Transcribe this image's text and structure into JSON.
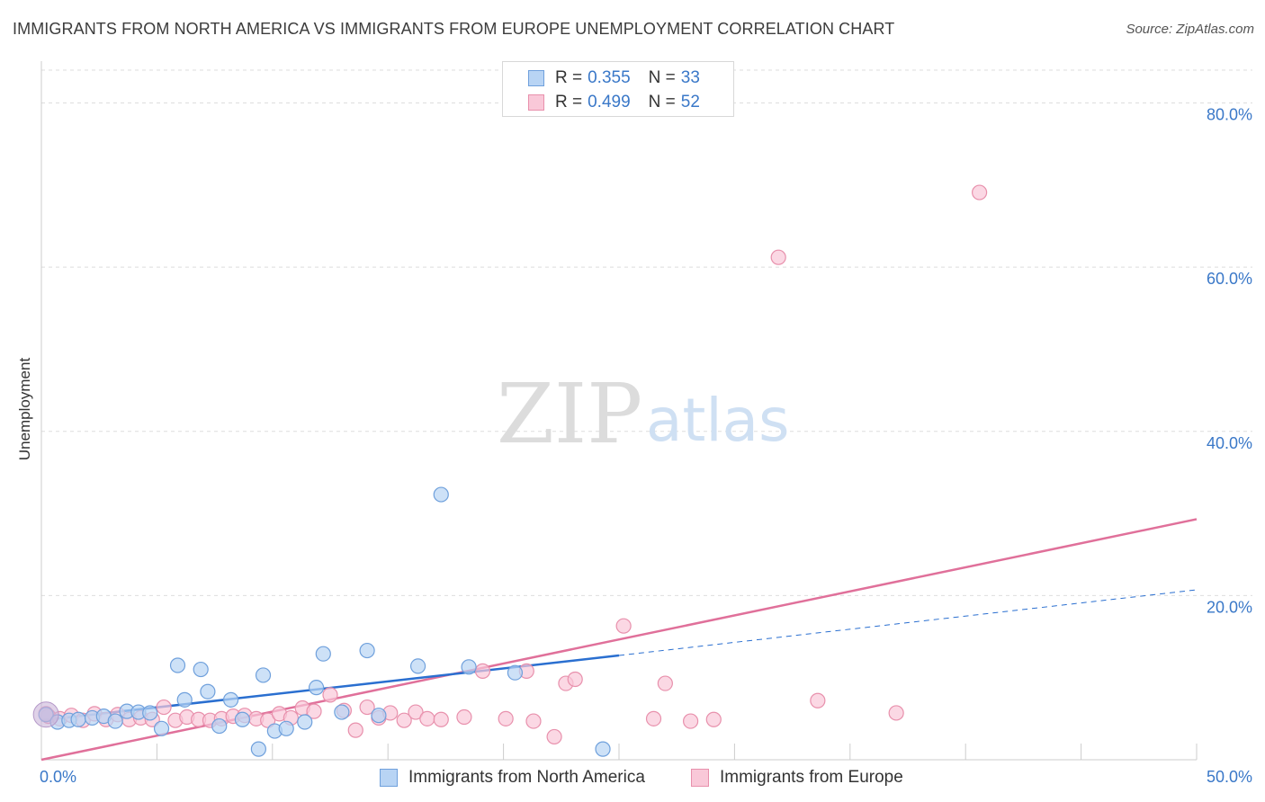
{
  "title": "IMMIGRANTS FROM NORTH AMERICA VS IMMIGRANTS FROM EUROPE UNEMPLOYMENT CORRELATION CHART",
  "source": "Source: ZipAtlas.com",
  "watermark": {
    "zip": "ZIP",
    "atlas": "atlas"
  },
  "legend": {
    "rows": [
      {
        "r_label": "R =",
        "r_value": "0.355",
        "n_label": "N =",
        "n_value": "33"
      },
      {
        "r_label": "R =",
        "r_value": "0.499",
        "n_label": "N =",
        "n_value": "52"
      }
    ]
  },
  "colors": {
    "blue_fill": "#b8d4f4",
    "blue_stroke": "#6fa0dc",
    "blue_line": "#2a6fd0",
    "pink_fill": "#f9c8d8",
    "pink_stroke": "#e890ac",
    "pink_line": "#e0709a",
    "grid": "#dddddd",
    "tick_text": "#3a78c8"
  },
  "chart_data": {
    "type": "scatter",
    "title": "IMMIGRANTS FROM NORTH AMERICA VS IMMIGRANTS FROM EUROPE UNEMPLOYMENT CORRELATION CHART",
    "xlabel": "",
    "ylabel": "Unemployment",
    "xlim": [
      0,
      50
    ],
    "ylim": [
      0,
      84
    ],
    "x_ticks": [
      "0.0%",
      "50.0%"
    ],
    "y_ticks": [
      {
        "value": 20,
        "label": "20.0%"
      },
      {
        "value": 40,
        "label": "40.0%"
      },
      {
        "value": 60,
        "label": "60.0%"
      },
      {
        "value": 80,
        "label": "80.0%"
      }
    ],
    "grid": true,
    "legend_position": "top-center",
    "series": [
      {
        "name": "Immigrants from North America",
        "color": "blue",
        "points": [
          [
            0.2,
            5.5
          ],
          [
            0.7,
            4.6
          ],
          [
            1.2,
            4.8
          ],
          [
            1.6,
            4.9
          ],
          [
            2.2,
            5.1
          ],
          [
            2.7,
            5.3
          ],
          [
            3.2,
            4.7
          ],
          [
            3.7,
            5.9
          ],
          [
            4.2,
            5.8
          ],
          [
            4.7,
            5.7
          ],
          [
            5.2,
            3.8
          ],
          [
            5.9,
            11.5
          ],
          [
            6.2,
            7.3
          ],
          [
            6.9,
            11.0
          ],
          [
            7.2,
            8.3
          ],
          [
            7.7,
            4.1
          ],
          [
            8.2,
            7.3
          ],
          [
            8.7,
            4.9
          ],
          [
            9.4,
            1.3
          ],
          [
            9.6,
            10.3
          ],
          [
            10.1,
            3.5
          ],
          [
            10.6,
            3.8
          ],
          [
            11.4,
            4.6
          ],
          [
            11.9,
            8.8
          ],
          [
            12.2,
            12.9
          ],
          [
            13.0,
            5.8
          ],
          [
            14.1,
            13.3
          ],
          [
            14.6,
            5.4
          ],
          [
            16.3,
            11.4
          ],
          [
            17.3,
            32.3
          ],
          [
            18.5,
            11.3
          ],
          [
            20.5,
            10.6
          ],
          [
            24.3,
            1.3
          ]
        ],
        "trend": {
          "x": [
            0,
            25
          ],
          "y": [
            4.8,
            12.7
          ]
        },
        "trend_extension": {
          "x": [
            25,
            50
          ],
          "y": [
            12.7,
            20.7
          ]
        }
      },
      {
        "name": "Immigrants from Europe",
        "color": "pink",
        "points": [
          [
            0.3,
            5.3
          ],
          [
            0.8,
            5.0
          ],
          [
            1.3,
            5.4
          ],
          [
            1.8,
            4.8
          ],
          [
            2.3,
            5.6
          ],
          [
            2.8,
            4.9
          ],
          [
            3.3,
            5.5
          ],
          [
            3.8,
            4.9
          ],
          [
            4.3,
            5.1
          ],
          [
            4.8,
            4.9
          ],
          [
            5.3,
            6.4
          ],
          [
            5.8,
            4.8
          ],
          [
            6.3,
            5.2
          ],
          [
            6.8,
            4.9
          ],
          [
            7.3,
            4.8
          ],
          [
            7.8,
            5.0
          ],
          [
            8.3,
            5.3
          ],
          [
            8.8,
            5.4
          ],
          [
            9.3,
            5.0
          ],
          [
            9.8,
            4.8
          ],
          [
            10.3,
            5.6
          ],
          [
            10.8,
            5.1
          ],
          [
            11.3,
            6.3
          ],
          [
            11.8,
            5.9
          ],
          [
            12.5,
            7.9
          ],
          [
            13.1,
            6.0
          ],
          [
            13.6,
            3.6
          ],
          [
            14.1,
            6.4
          ],
          [
            14.6,
            5.1
          ],
          [
            15.1,
            5.7
          ],
          [
            15.7,
            4.8
          ],
          [
            16.2,
            5.8
          ],
          [
            16.7,
            5.0
          ],
          [
            17.3,
            4.9
          ],
          [
            18.3,
            5.2
          ],
          [
            19.1,
            10.8
          ],
          [
            20.1,
            5.0
          ],
          [
            21.0,
            10.8
          ],
          [
            21.3,
            4.7
          ],
          [
            22.2,
            2.8
          ],
          [
            22.7,
            9.3
          ],
          [
            23.1,
            9.8
          ],
          [
            25.2,
            16.3
          ],
          [
            26.5,
            5.0
          ],
          [
            27.0,
            9.3
          ],
          [
            28.1,
            4.7
          ],
          [
            29.1,
            4.9
          ],
          [
            31.9,
            61.2
          ],
          [
            33.6,
            7.2
          ],
          [
            37.0,
            5.7
          ],
          [
            40.6,
            69.1
          ],
          [
            0.2,
            5.6
          ]
        ],
        "trend": {
          "x": [
            0,
            50
          ],
          "y": [
            0,
            29.3
          ]
        }
      }
    ]
  },
  "bottom_legend": [
    {
      "label": "Immigrants from North America"
    },
    {
      "label": "Immigrants from Europe"
    }
  ]
}
